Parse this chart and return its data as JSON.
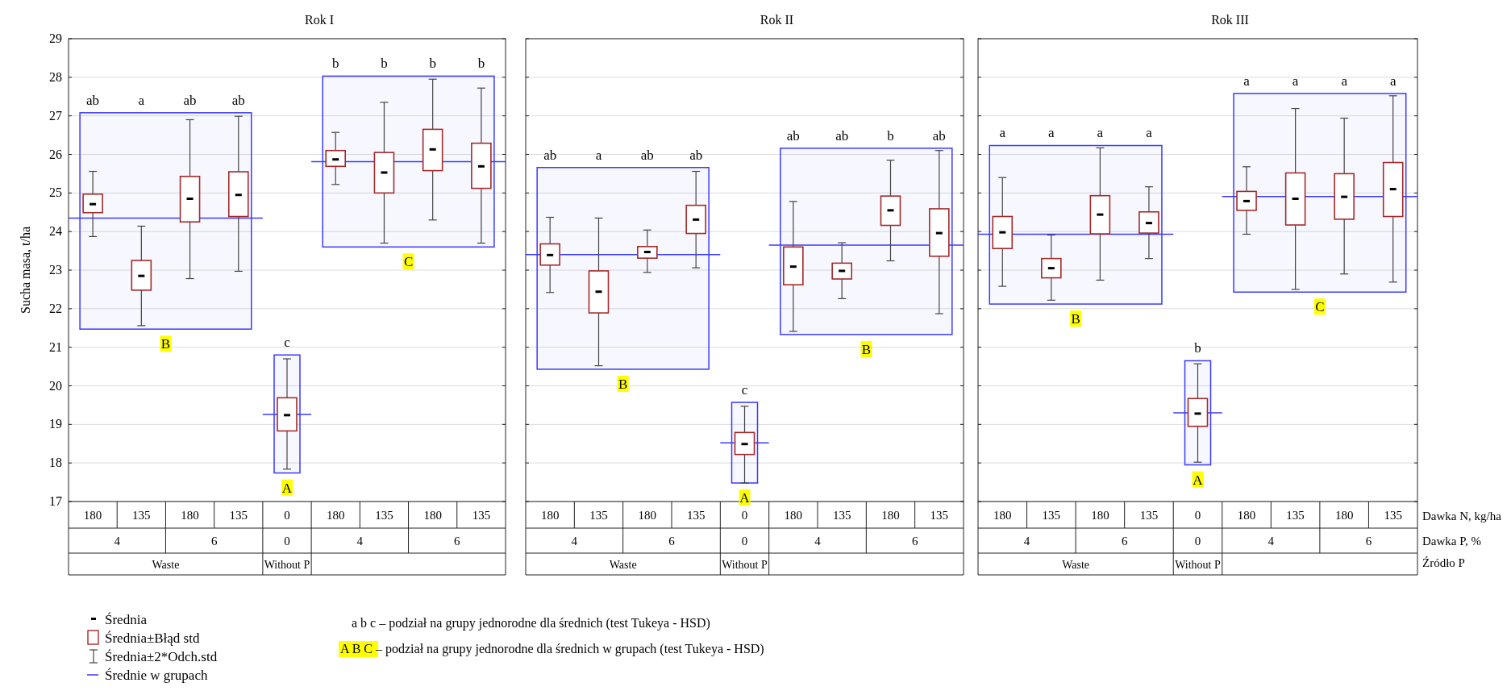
{
  "chart_data": [
    {
      "type": "box",
      "title": "Rok I",
      "ylabel": "Sucha masa, t/ha",
      "categories": [
        "180",
        "135",
        "180",
        "135",
        "0",
        "180",
        "135",
        "180",
        "135"
      ],
      "ylim": [
        17,
        29
      ],
      "yticks": [
        17,
        18,
        19,
        20,
        21,
        22,
        23,
        24,
        25,
        26,
        27,
        28,
        29
      ],
      "grid": "y",
      "series": [
        {
          "color": "#a52a2a",
          "boxes": [
            {
              "low": 23.87,
              "q1": 24.49,
              "mean": 24.71,
              "q3": 24.97,
              "high": 25.56
            },
            {
              "low": 21.56,
              "q1": 22.48,
              "mean": 22.85,
              "q3": 23.25,
              "high": 24.14
            },
            {
              "low": 22.78,
              "q1": 24.25,
              "mean": 24.85,
              "q3": 25.43,
              "high": 26.9
            },
            {
              "low": 22.97,
              "q1": 24.39,
              "mean": 24.95,
              "q3": 25.55,
              "high": 26.99
            },
            null,
            null,
            null,
            null,
            null
          ],
          "value_labels": [
            "ab",
            "a",
            "ab",
            "ab",
            null,
            null,
            null,
            null,
            null
          ]
        },
        {
          "color": "#a52a2a",
          "boxes": [
            null,
            null,
            null,
            null,
            {
              "low": 17.84,
              "q1": 18.83,
              "mean": 19.24,
              "q3": 19.69,
              "high": 20.7
            },
            null,
            null,
            null,
            null
          ],
          "value_labels": [
            null,
            null,
            null,
            null,
            "c",
            null,
            null,
            null,
            null
          ]
        },
        {
          "color": "#a52a2a",
          "boxes": [
            null,
            null,
            null,
            null,
            null,
            {
              "low": 25.22,
              "q1": 25.69,
              "mean": 25.87,
              "q3": 26.1,
              "high": 26.57
            },
            {
              "low": 23.7,
              "q1": 25.0,
              "mean": 25.53,
              "q3": 26.05,
              "high": 27.35
            },
            {
              "low": 24.3,
              "q1": 25.58,
              "mean": 26.13,
              "q3": 26.65,
              "high": 27.95
            },
            {
              "low": 23.7,
              "q1": 25.12,
              "mean": 25.69,
              "q3": 26.29,
              "high": 27.72
            }
          ],
          "value_labels": [
            null,
            null,
            null,
            null,
            null,
            "b",
            "b",
            "b",
            "b"
          ]
        }
      ],
      "ref_lines": [
        {
          "axis": "y",
          "value": 24.35,
          "color": "#3a3aff"
        },
        {
          "axis": "y",
          "value": 19.26,
          "color": "#3a3aff"
        },
        {
          "axis": "y",
          "value": 25.81,
          "color": "#3a3aff"
        }
      ],
      "bands": [
        {
          "axis": "y",
          "from": 21.47,
          "to": 27.08,
          "label": "B",
          "color": "#3a3aff"
        },
        {
          "axis": "y",
          "from": 17.74,
          "to": 20.8,
          "label": "A",
          "color": "#3a3aff"
        },
        {
          "axis": "y",
          "from": 23.6,
          "to": 28.03,
          "label": "C",
          "color": "#3a3aff"
        }
      ],
      "annotations": [
        "4",
        "6",
        "0",
        "4",
        "6",
        "Waste",
        "Without P",
        "Średnia",
        "Średnia±Błąd std",
        "Średnia±2*Odch.std",
        "Średnie w grupach",
        "a b c – podział na grupy jednorodne dla średnich  (test Tukeya  - HSD)",
        "A B C – podział na grupy jednorodne dla średnich w grupach (test Tukeya  - HSD)"
      ]
    },
    {
      "type": "box",
      "title": "Rok II",
      "categories": [
        "180",
        "135",
        "180",
        "135",
        "0",
        "180",
        "135",
        "180",
        "135"
      ],
      "ylim": [
        17,
        29
      ],
      "yticks": [
        17,
        18,
        19,
        20,
        21,
        22,
        23,
        24,
        25,
        26,
        27,
        28,
        29
      ],
      "grid": "y",
      "tick_labels": "x",
      "series": [
        {
          "color": "#a52a2a",
          "boxes": [
            {
              "low": 22.42,
              "q1": 23.13,
              "mean": 23.39,
              "q3": 23.68,
              "high": 24.37
            },
            {
              "low": 20.52,
              "q1": 21.89,
              "mean": 22.44,
              "q3": 22.98,
              "high": 24.35
            },
            {
              "low": 22.94,
              "q1": 23.31,
              "mean": 23.47,
              "q3": 23.61,
              "high": 24.04
            },
            {
              "low": 23.06,
              "q1": 23.95,
              "mean": 24.31,
              "q3": 24.68,
              "high": 25.56
            },
            null,
            null,
            null,
            null,
            null
          ],
          "value_labels": [
            "ab",
            "a",
            "ab",
            "ab",
            null,
            null,
            null,
            null,
            null
          ]
        },
        {
          "color": "#a52a2a",
          "boxes": [
            null,
            null,
            null,
            null,
            {
              "low": 17.48,
              "q1": 18.22,
              "mean": 18.49,
              "q3": 18.79,
              "high": 19.47
            },
            null,
            null,
            null,
            null
          ],
          "value_labels": [
            null,
            null,
            null,
            null,
            "c",
            null,
            null,
            null,
            null
          ]
        },
        {
          "color": "#a52a2a",
          "boxes": [
            null,
            null,
            null,
            null,
            null,
            {
              "low": 21.41,
              "q1": 22.62,
              "mean": 23.09,
              "q3": 23.6,
              "high": 24.78
            },
            {
              "low": 22.26,
              "q1": 22.77,
              "mean": 22.98,
              "q3": 23.18,
              "high": 23.71
            },
            {
              "low": 23.24,
              "q1": 24.16,
              "mean": 24.55,
              "q3": 24.92,
              "high": 25.85
            },
            {
              "low": 21.87,
              "q1": 23.36,
              "mean": 23.96,
              "q3": 24.59,
              "high": 26.1
            }
          ],
          "value_labels": [
            null,
            null,
            null,
            null,
            null,
            "ab",
            "ab",
            "b",
            "ab"
          ]
        }
      ],
      "ref_lines": [
        {
          "axis": "y",
          "value": 23.4,
          "color": "#3a3aff"
        },
        {
          "axis": "y",
          "value": 18.52,
          "color": "#3a3aff"
        },
        {
          "axis": "y",
          "value": 23.65,
          "color": "#3a3aff"
        }
      ],
      "bands": [
        {
          "axis": "y",
          "from": 20.43,
          "to": 25.66,
          "label": "B",
          "color": "#3a3aff"
        },
        {
          "axis": "y",
          "from": 17.48,
          "to": 19.57,
          "label": "A",
          "color": "#3a3aff"
        },
        {
          "axis": "y",
          "from": 21.33,
          "to": 26.16,
          "label": "B",
          "color": "#3a3aff"
        }
      ],
      "annotations": [
        "4",
        "6",
        "0",
        "4",
        "6",
        "Waste",
        "Without P"
      ]
    },
    {
      "type": "box",
      "title": "Rok III",
      "categories": [
        "180",
        "135",
        "180",
        "135",
        "0",
        "180",
        "135",
        "180",
        "135"
      ],
      "ylim": [
        17,
        29
      ],
      "yticks": [
        17,
        18,
        19,
        20,
        21,
        22,
        23,
        24,
        25,
        26,
        27,
        28,
        29
      ],
      "grid": "y",
      "tick_labels": "x",
      "series": [
        {
          "color": "#a52a2a",
          "boxes": [
            {
              "low": 22.58,
              "q1": 23.56,
              "mean": 23.98,
              "q3": 24.39,
              "high": 25.4
            },
            {
              "low": 22.22,
              "q1": 22.8,
              "mean": 23.05,
              "q3": 23.3,
              "high": 23.91
            },
            {
              "low": 22.74,
              "q1": 23.94,
              "mean": 24.44,
              "q3": 24.93,
              "high": 26.17
            },
            {
              "low": 23.3,
              "q1": 23.96,
              "mean": 24.22,
              "q3": 24.51,
              "high": 25.16
            },
            null,
            null,
            null,
            null,
            null
          ],
          "value_labels": [
            "a",
            "a",
            "a",
            "a",
            null,
            null,
            null,
            null,
            null
          ]
        },
        {
          "color": "#a52a2a",
          "boxes": [
            null,
            null,
            null,
            null,
            {
              "low": 18.02,
              "q1": 18.95,
              "mean": 19.28,
              "q3": 19.67,
              "high": 20.57
            },
            null,
            null,
            null,
            null
          ],
          "value_labels": [
            null,
            null,
            null,
            null,
            "b",
            null,
            null,
            null,
            null
          ]
        },
        {
          "color": "#a52a2a",
          "boxes": [
            null,
            null,
            null,
            null,
            null,
            {
              "low": 23.93,
              "q1": 24.55,
              "mean": 24.79,
              "q3": 25.04,
              "high": 25.68
            },
            {
              "low": 22.5,
              "q1": 24.17,
              "mean": 24.85,
              "q3": 25.52,
              "high": 27.19
            },
            {
              "low": 22.9,
              "q1": 24.32,
              "mean": 24.9,
              "q3": 25.5,
              "high": 26.94
            },
            {
              "low": 22.69,
              "q1": 24.39,
              "mean": 25.1,
              "q3": 25.79,
              "high": 27.52
            }
          ],
          "value_labels": [
            null,
            null,
            null,
            null,
            null,
            "a",
            "a",
            "a",
            "a"
          ]
        }
      ],
      "ref_lines": [
        {
          "axis": "y",
          "value": 23.93,
          "color": "#3a3aff"
        },
        {
          "axis": "y",
          "value": 19.3,
          "color": "#3a3aff"
        },
        {
          "axis": "y",
          "value": 24.91,
          "color": "#3a3aff"
        }
      ],
      "bands": [
        {
          "axis": "y",
          "from": 22.12,
          "to": 26.23,
          "label": "B",
          "color": "#3a3aff"
        },
        {
          "axis": "y",
          "from": 17.95,
          "to": 20.65,
          "label": "A",
          "color": "#3a3aff"
        },
        {
          "axis": "y",
          "from": 22.43,
          "to": 27.58,
          "label": "C",
          "color": "#3a3aff"
        }
      ],
      "annotations": [
        "4",
        "6",
        "0",
        "4",
        "6",
        "Waste",
        "Without P",
        "Dawka N, kg/ha",
        "Dawka P, %",
        "Źródło P"
      ]
    }
  ]
}
